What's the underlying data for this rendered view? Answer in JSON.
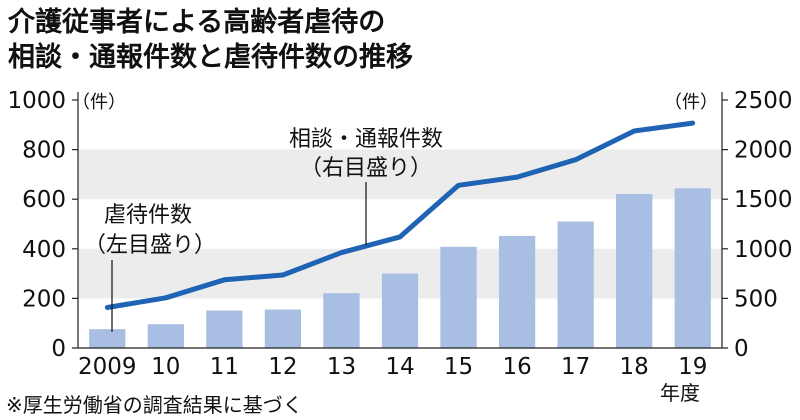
{
  "chart_data": {
    "type": "bar",
    "title": [
      "介護従事者による高齢者虐待の",
      "相談・通報件数と虐待件数の推移"
    ],
    "categories": [
      "2009",
      "10",
      "11",
      "12",
      "13",
      "14",
      "15",
      "16",
      "17",
      "18",
      "19"
    ],
    "x_unit_label": "年度",
    "y_left": {
      "unit": "（件）",
      "ticks": [
        0,
        200,
        400,
        600,
        800,
        1000
      ],
      "ylim": [
        0,
        1000
      ]
    },
    "y_right": {
      "unit": "（件）",
      "ticks": [
        0,
        500,
        1000,
        1500,
        2000,
        2500
      ],
      "ylim": [
        0,
        2500
      ]
    },
    "series": [
      {
        "name": [
          "虐待件数",
          "（左目盛り）"
        ],
        "type": "bar",
        "axis": "left",
        "color": "#a8bfe3",
        "values": [
          76,
          96,
          151,
          155,
          221,
          300,
          408,
          452,
          510,
          621,
          644
        ]
      },
      {
        "name": [
          "相談・通報件数",
          "（右目盛り）"
        ],
        "type": "line",
        "axis": "right",
        "color": "#1f63b4",
        "values": [
          408,
          506,
          687,
          736,
          962,
          1120,
          1640,
          1723,
          1898,
          2187,
          2267
        ]
      }
    ],
    "grid": "alternating horizontal bands",
    "note": "※厚生労働省の調査結果に基づく"
  }
}
